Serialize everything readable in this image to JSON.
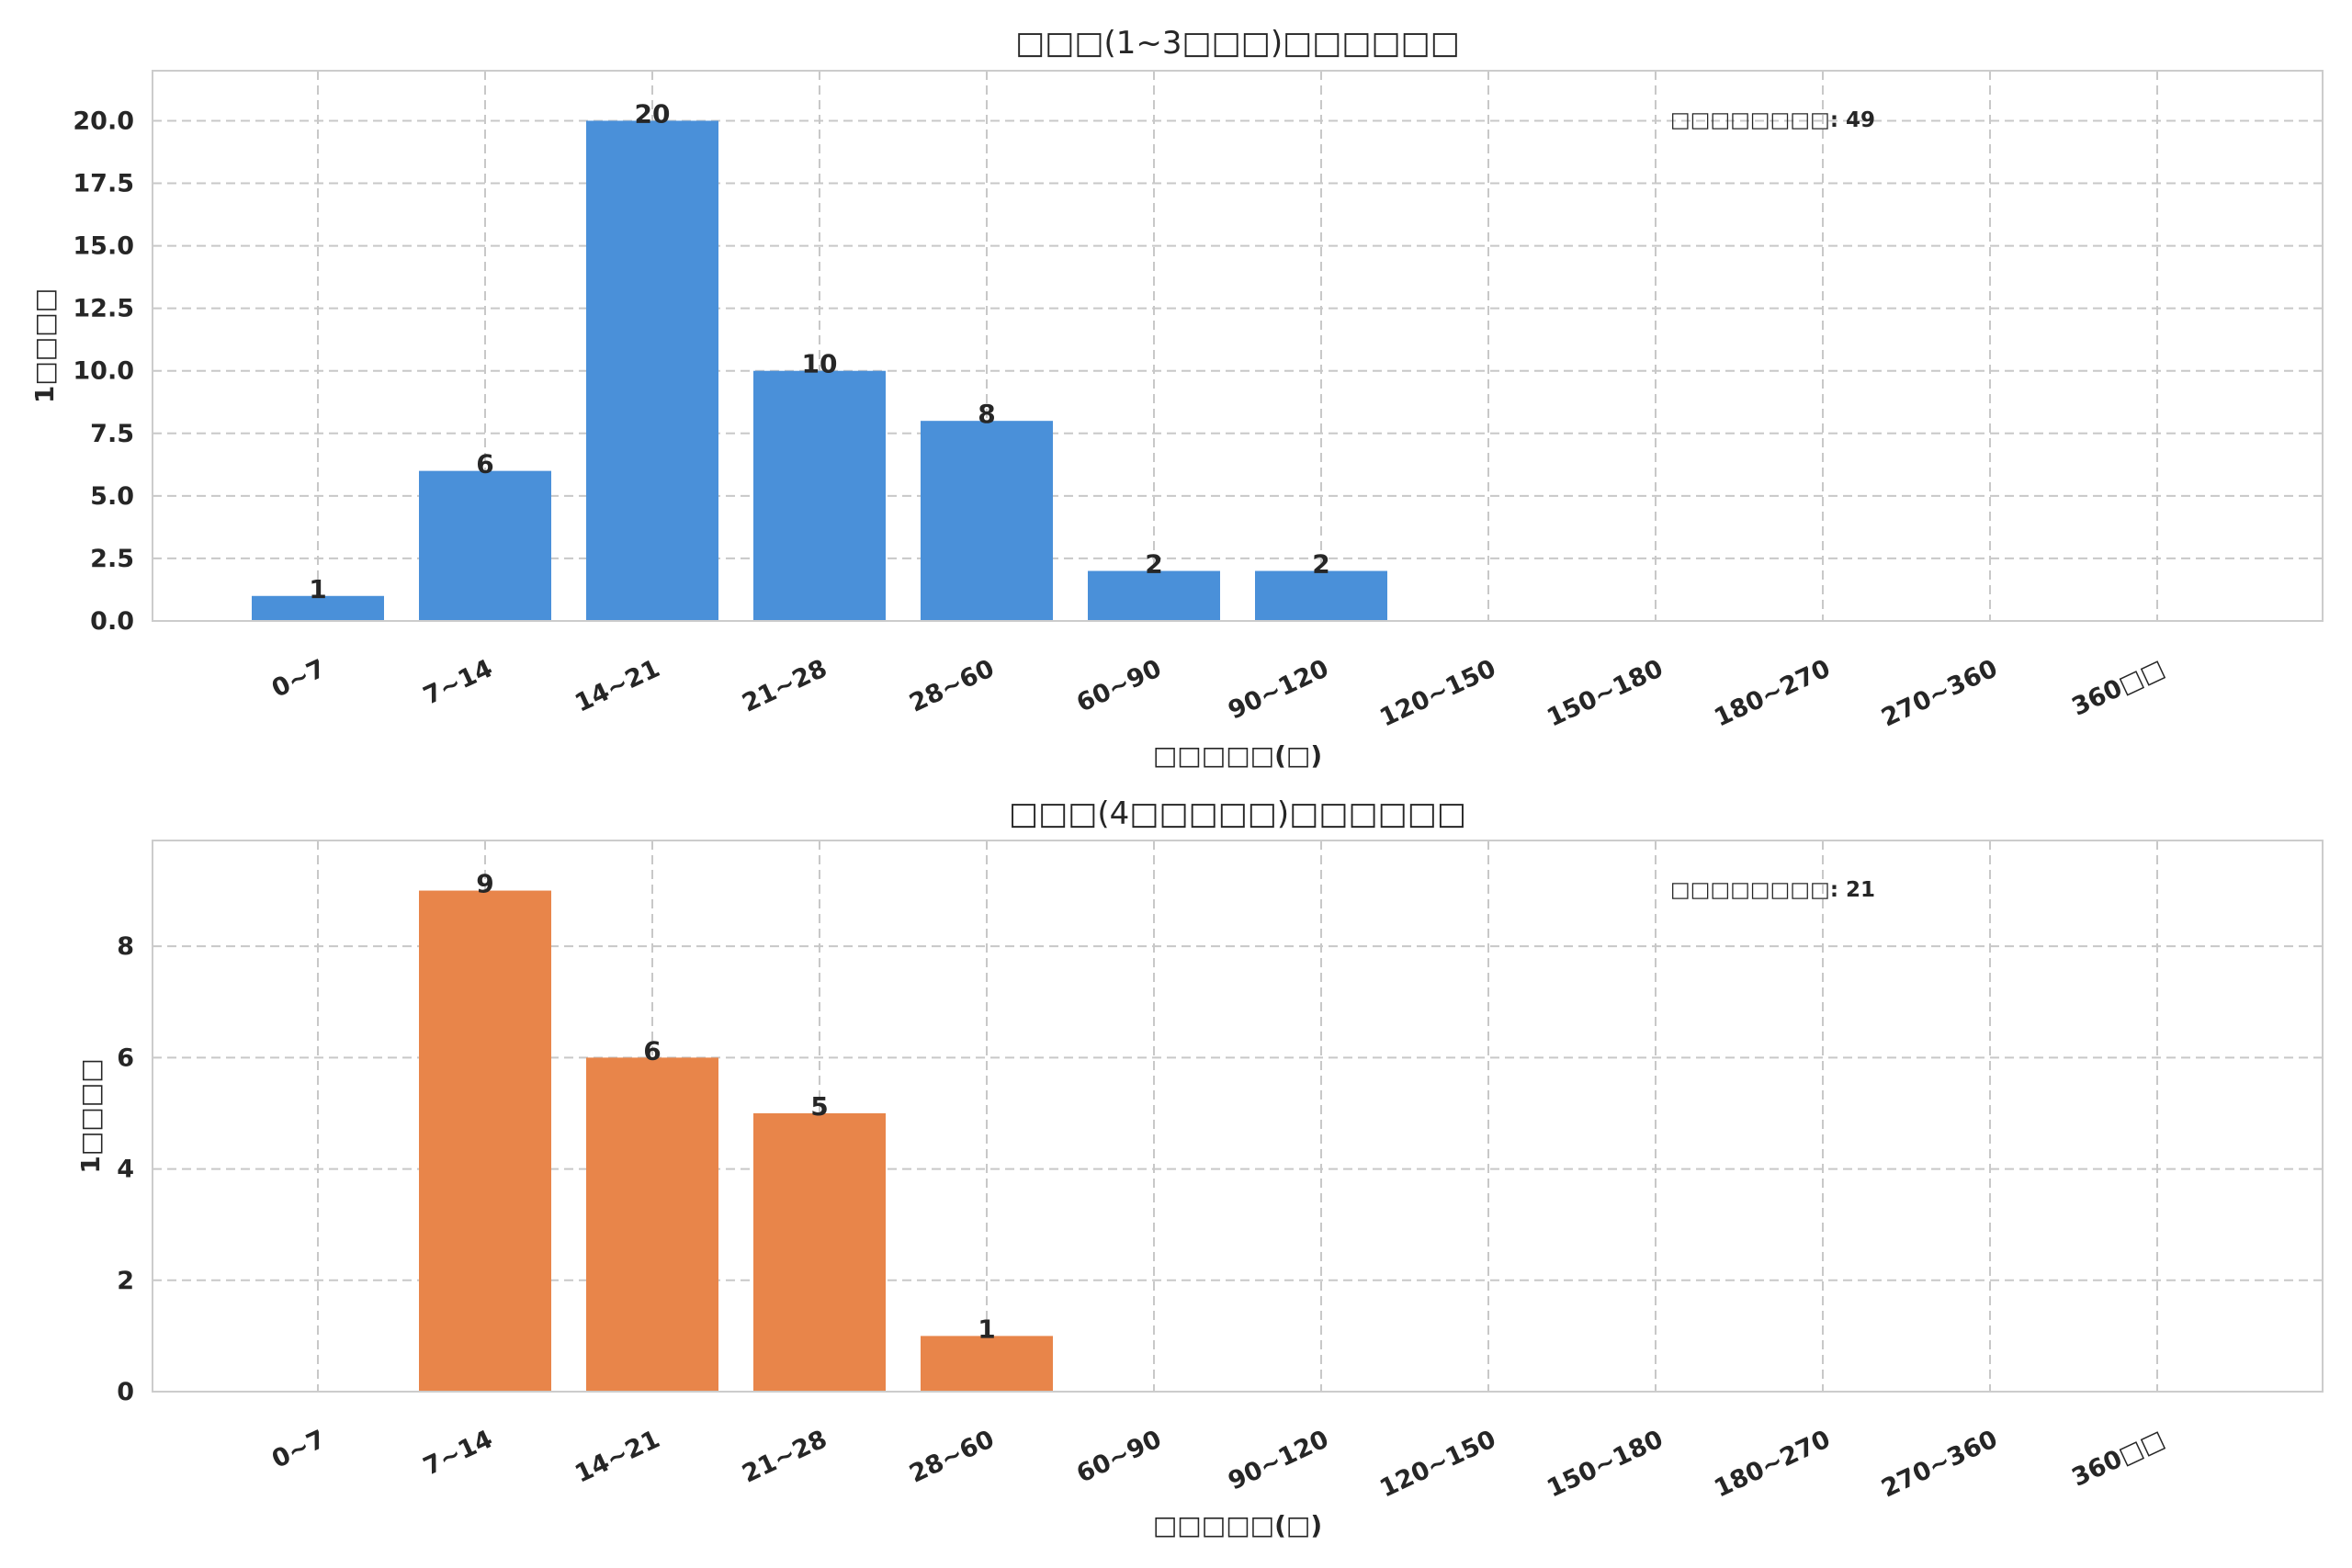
{
  "chart_data": [
    {
      "type": "bar",
      "title": "□□□(1~3□□□)□□□□□□",
      "xlabel": "□□□□□(□)",
      "ylabel": "1□□□□",
      "categories": [
        "0~7",
        "7~14",
        "14~21",
        "21~28",
        "28~60",
        "60~90",
        "90~120",
        "120~150",
        "150~180",
        "180~270",
        "270~360",
        "360□□"
      ],
      "values": [
        1,
        6,
        20,
        10,
        8,
        2,
        2,
        0,
        0,
        0,
        0,
        0
      ],
      "ylim": [
        0,
        22
      ],
      "yticks": [
        "0.0",
        "2.5",
        "5.0",
        "7.5",
        "10.0",
        "12.5",
        "15.0",
        "17.5",
        "20.0"
      ],
      "annotation": "□□□□□□□□: 49",
      "color": "#4a90d9",
      "grid": true
    },
    {
      "type": "bar",
      "title": "□□□(4□□□□□)□□□□□□",
      "xlabel": "□□□□□(□)",
      "ylabel": "1□□□□",
      "categories": [
        "0~7",
        "7~14",
        "14~21",
        "21~28",
        "28~60",
        "60~90",
        "90~120",
        "120~150",
        "150~180",
        "180~270",
        "270~360",
        "360□□"
      ],
      "values": [
        0,
        9,
        6,
        5,
        1,
        0,
        0,
        0,
        0,
        0,
        0,
        0
      ],
      "ylim": [
        0,
        9.9
      ],
      "yticks": [
        "0",
        "2",
        "4",
        "6",
        "8"
      ],
      "annotation": "□□□□□□□□: 21",
      "color": "#e8854a",
      "grid": true
    }
  ]
}
